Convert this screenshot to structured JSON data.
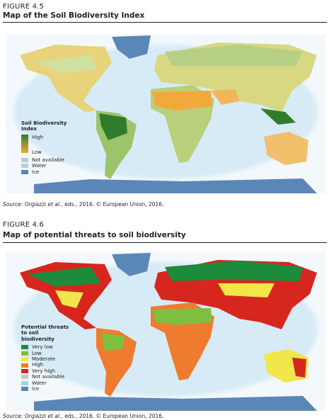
{
  "figures": [
    {
      "label": "FIGURE 4.5",
      "title": "Map of the Soil Biodiversity Index",
      "legend": {
        "title": "Soil Biodiversity Index",
        "gradient": true,
        "items": [
          {
            "label": "High",
            "color": "#2f7d2c"
          },
          {
            "label": "Low",
            "color": "#f2a93b"
          },
          {
            "label": "Not available",
            "color": "#c9c6c1"
          },
          {
            "label": "Water",
            "color": "#a9d3ea"
          },
          {
            "label": "Ice",
            "color": "#5b86b8"
          }
        ]
      },
      "source": [
        "Source:",
        " Orgiazzi ",
        "et al.",
        ", eds., 2016. © European Union, 2016."
      ]
    },
    {
      "label": "FIGURE 4.6",
      "title": "Map of potential threats to soil biodiversity",
      "legend": {
        "title": "Potential threats to soil biodiversity",
        "gradient": false,
        "items": [
          {
            "label": "Very low",
            "color": "#1e8a3c"
          },
          {
            "label": "Low",
            "color": "#7fbf3f"
          },
          {
            "label": "Moderate",
            "color": "#f1e64a"
          },
          {
            "label": "High",
            "color": "#ef7b2e"
          },
          {
            "label": "Very high",
            "color": "#d7261e"
          },
          {
            "label": "Not available",
            "color": "#c9c6c1"
          },
          {
            "label": "Water",
            "color": "#a9d3ea"
          },
          {
            "label": "Ice",
            "color": "#5b86b8"
          }
        ]
      },
      "source": [
        "Source:",
        " Orgiazzi ",
        "et al.",
        ", eds., 2016. © European Union, 2016."
      ]
    }
  ]
}
